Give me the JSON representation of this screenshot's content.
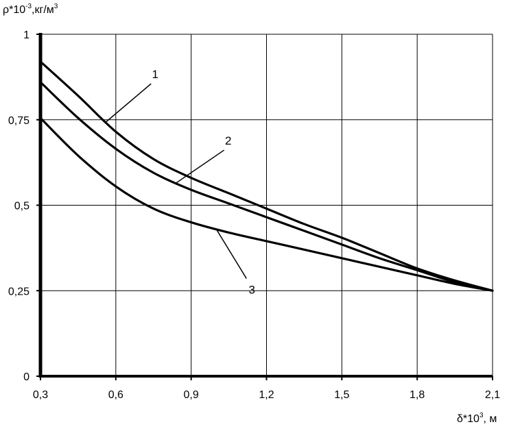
{
  "chart_data": {
    "type": "line",
    "title": "",
    "ylabel": {
      "base": "ρ*10",
      "exp": "-3",
      "unit": ",кг/м",
      "unit_exp": "3"
    },
    "xlabel": {
      "base": "δ*10",
      "exp": "3",
      "unit": ", м"
    },
    "xlim": [
      0.3,
      2.1
    ],
    "ylim": [
      0,
      1
    ],
    "grid": true,
    "x_ticks": [
      {
        "value": 0.3,
        "label": "0,3"
      },
      {
        "value": 0.6,
        "label": "0,6"
      },
      {
        "value": 0.9,
        "label": "0,9"
      },
      {
        "value": 1.2,
        "label": "1,2"
      },
      {
        "value": 1.5,
        "label": "1,5"
      },
      {
        "value": 1.8,
        "label": "1,8"
      },
      {
        "value": 2.1,
        "label": "2,1"
      }
    ],
    "y_ticks": [
      {
        "value": 0,
        "label": "0"
      },
      {
        "value": 0.25,
        "label": "0,25"
      },
      {
        "value": 0.5,
        "label": "0,5"
      },
      {
        "value": 0.75,
        "label": "0,75"
      },
      {
        "value": 1,
        "label": "1"
      }
    ],
    "series": [
      {
        "label": "1",
        "x": [
          0.3,
          0.45,
          0.6,
          0.75,
          0.9,
          1.05,
          1.2,
          1.35,
          1.5,
          1.65,
          1.8,
          1.95,
          2.1
        ],
        "y": [
          0.92,
          0.82,
          0.715,
          0.635,
          0.58,
          0.535,
          0.49,
          0.445,
          0.405,
          0.36,
          0.315,
          0.28,
          0.25
        ]
      },
      {
        "label": "2",
        "x": [
          0.3,
          0.45,
          0.6,
          0.75,
          0.9,
          1.05,
          1.2,
          1.35,
          1.5,
          1.65,
          1.8,
          1.95,
          2.1
        ],
        "y": [
          0.86,
          0.755,
          0.665,
          0.595,
          0.545,
          0.505,
          0.465,
          0.425,
          0.385,
          0.345,
          0.31,
          0.275,
          0.25
        ]
      },
      {
        "label": "3",
        "x": [
          0.3,
          0.45,
          0.6,
          0.75,
          0.9,
          1.05,
          1.2,
          1.35,
          1.5,
          1.65,
          1.8,
          1.95,
          2.1
        ],
        "y": [
          0.755,
          0.645,
          0.555,
          0.49,
          0.45,
          0.42,
          0.395,
          0.37,
          0.345,
          0.32,
          0.295,
          0.27,
          0.25
        ]
      }
    ],
    "annotations": [
      {
        "label": "1",
        "series_index": 0,
        "anchor_x": 0.56
      },
      {
        "label": "2",
        "series_index": 1,
        "anchor_x": 0.84
      },
      {
        "label": "3",
        "series_index": 2,
        "anchor_x": 1.0
      }
    ]
  }
}
